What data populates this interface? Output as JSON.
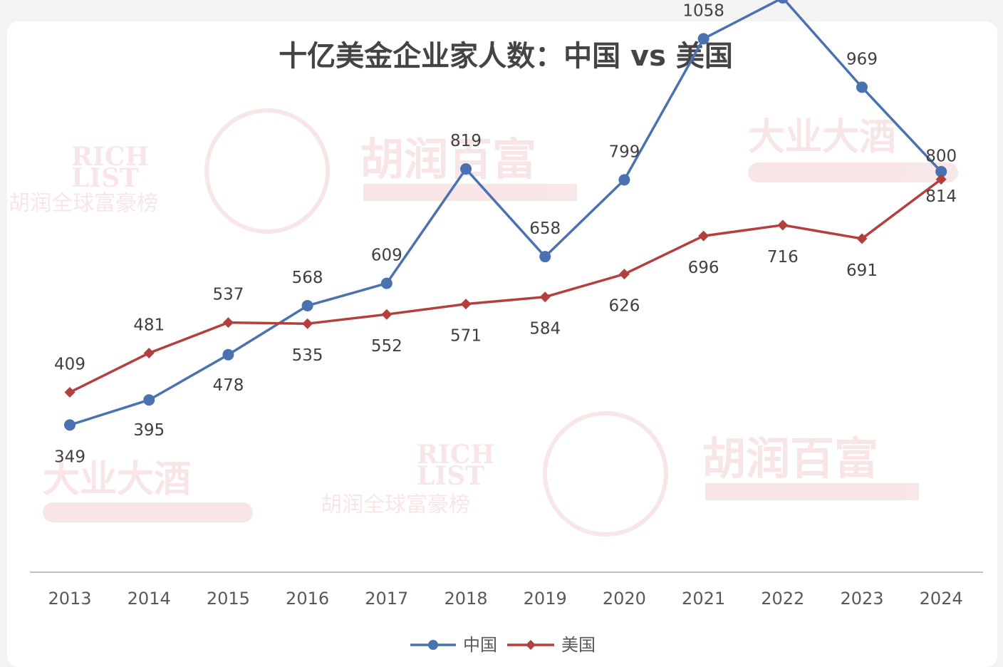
{
  "chart_data": {
    "type": "line",
    "title": "十亿美金企业家人数：中国 vs 美国",
    "categories": [
      "2013",
      "2014",
      "2015",
      "2016",
      "2017",
      "2018",
      "2019",
      "2020",
      "2021",
      "2022",
      "2023",
      "2024"
    ],
    "series": [
      {
        "name": "中国",
        "color": "#4a72b0",
        "marker": "circle",
        "values": [
          349,
          395,
          478,
          568,
          609,
          819,
          658,
          799,
          1058,
          1133,
          969,
          814
        ]
      },
      {
        "name": "美国",
        "color": "#b3403e",
        "marker": "diamond",
        "values": [
          409,
          481,
          537,
          535,
          552,
          571,
          584,
          626,
          696,
          716,
          691,
          800
        ]
      }
    ],
    "legend_position": "bottom-center",
    "grid": false
  },
  "watermarks": {
    "hurun_cn": "胡润百富",
    "hurun_en": "Hurun's REPORT",
    "rich_list_1": "RICH",
    "rich_list_2": "LIST",
    "rich_list_cn": "胡润全球富豪榜",
    "liquor": "大业大酒"
  }
}
